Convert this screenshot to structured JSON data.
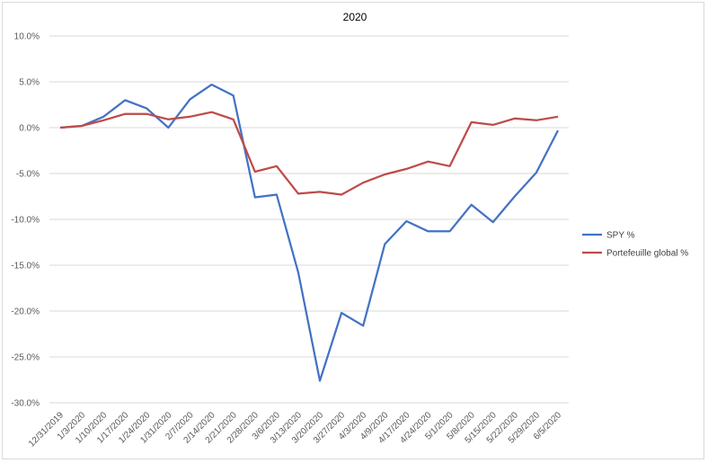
{
  "chart_data": {
    "type": "line",
    "title": "2020",
    "xlabel": "",
    "ylabel": "",
    "ylim": [
      -30,
      10
    ],
    "yticks": [
      "10.0%",
      "5.0%",
      "0.0%",
      "-5.0%",
      "-10.0%",
      "-15.0%",
      "-20.0%",
      "-25.0%",
      "-30.0%"
    ],
    "ytick_values": [
      10,
      5,
      0,
      -5,
      -10,
      -15,
      -20,
      -25,
      -30
    ],
    "grid": true,
    "legend_position": "right",
    "categories": [
      "12/31/2019",
      "1/3/2020",
      "1/10/2020",
      "1/17/2020",
      "1/24/2020",
      "1/31/2020",
      "2/7/2020",
      "2/14/2020",
      "2/21/2020",
      "2/28/2020",
      "3/6/2020",
      "3/13/2020",
      "3/20/2020",
      "3/27/2020",
      "4/3/2020",
      "4/9/2020",
      "4/17/2020",
      "4/24/2020",
      "5/1/2020",
      "5/8/2020",
      "5/15/2020",
      "5/22/2020",
      "5/29/2020",
      "6/5/2020"
    ],
    "series": [
      {
        "name": "SPY %",
        "color": "#4472c4",
        "values": [
          0.0,
          0.2,
          1.2,
          3.0,
          2.1,
          0.0,
          3.1,
          4.7,
          3.5,
          -7.6,
          -7.3,
          -15.8,
          -27.6,
          -20.2,
          -21.6,
          -12.7,
          -10.2,
          -11.3,
          -11.3,
          -8.4,
          -10.3,
          -7.5,
          -4.9,
          -0.3
        ]
      },
      {
        "name": "Portefeuille global %",
        "color": "#be4b48",
        "values": [
          0.0,
          0.2,
          0.8,
          1.5,
          1.5,
          0.9,
          1.2,
          1.7,
          0.9,
          -4.8,
          -4.2,
          -7.2,
          -7.0,
          -7.3,
          -6.0,
          -5.1,
          -4.5,
          -3.7,
          -4.2,
          0.6,
          0.3,
          1.0,
          0.8,
          1.2
        ]
      }
    ]
  }
}
